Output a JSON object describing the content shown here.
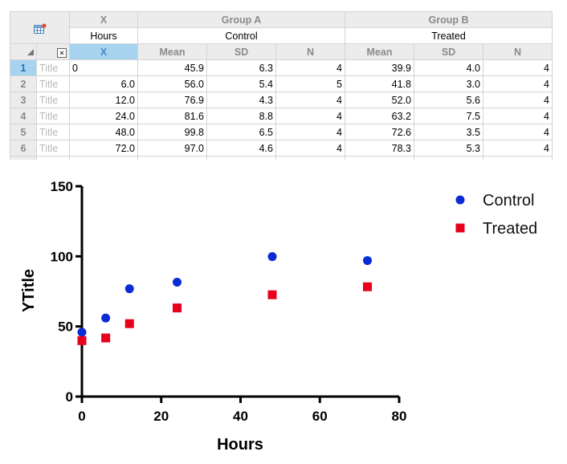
{
  "table": {
    "x_group_header": "X",
    "x_title": "Hours",
    "groups": [
      {
        "header": "Group A",
        "title": "Control"
      },
      {
        "header": "Group B",
        "title": "Treated"
      }
    ],
    "col_headers": {
      "x": "X",
      "a_mean": "Mean",
      "a_sd": "SD",
      "a_n": "N",
      "b_mean": "Mean",
      "b_sd": "SD",
      "b_n": "N"
    },
    "close_glyph": "×",
    "rows": [
      {
        "num": "1",
        "title": "Title",
        "x": "0",
        "a_mean": "45.9",
        "a_sd": "6.3",
        "a_n": "4",
        "b_mean": "39.9",
        "b_sd": "4.0",
        "b_n": "4"
      },
      {
        "num": "2",
        "title": "Title",
        "x": "6.0",
        "a_mean": "56.0",
        "a_sd": "5.4",
        "a_n": "5",
        "b_mean": "41.8",
        "b_sd": "3.0",
        "b_n": "4"
      },
      {
        "num": "3",
        "title": "Title",
        "x": "12.0",
        "a_mean": "76.9",
        "a_sd": "4.3",
        "a_n": "4",
        "b_mean": "52.0",
        "b_sd": "5.6",
        "b_n": "4"
      },
      {
        "num": "4",
        "title": "Title",
        "x": "24.0",
        "a_mean": "81.6",
        "a_sd": "8.8",
        "a_n": "4",
        "b_mean": "63.2",
        "b_sd": "7.5",
        "b_n": "4"
      },
      {
        "num": "5",
        "title": "Title",
        "x": "48.0",
        "a_mean": "99.8",
        "a_sd": "6.5",
        "a_n": "4",
        "b_mean": "72.6",
        "b_sd": "3.5",
        "b_n": "4"
      },
      {
        "num": "6",
        "title": "Title",
        "x": "72.0",
        "a_mean": "97.0",
        "a_sd": "4.6",
        "a_n": "4",
        "b_mean": "78.3",
        "b_sd": "5.3",
        "b_n": "4"
      }
    ]
  },
  "chart_data": {
    "type": "scatter",
    "title": "",
    "xlabel": "Hours",
    "ylabel": "YTitle",
    "xlim": [
      0,
      80
    ],
    "ylim": [
      0,
      150
    ],
    "xticks": [
      0,
      20,
      40,
      60,
      80
    ],
    "yticks": [
      0,
      50,
      100,
      150
    ],
    "legend_position": "top-right",
    "series": [
      {
        "name": "Control",
        "marker": "circle",
        "color": "#0a2bd6",
        "x": [
          0,
          6,
          12,
          24,
          48,
          72
        ],
        "y": [
          45.9,
          56.0,
          76.9,
          81.6,
          99.8,
          97.0
        ]
      },
      {
        "name": "Treated",
        "marker": "square",
        "color": "#e8001c",
        "x": [
          0,
          6,
          12,
          24,
          48,
          72
        ],
        "y": [
          39.9,
          41.8,
          52.0,
          63.2,
          72.6,
          78.3
        ]
      }
    ]
  }
}
